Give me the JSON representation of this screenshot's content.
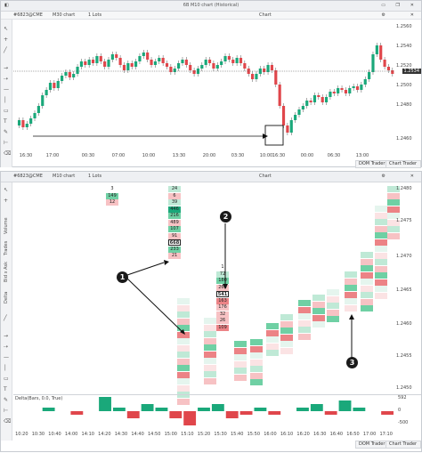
{
  "top_panel": {
    "window_title": "6B M10 chart (Historical)",
    "tab_title": "Chart",
    "symbol": "#6823@CME",
    "timeframe": "M30 chart",
    "lots": "1 Lots",
    "current_price": "1.2534",
    "y_ticks": [
      "1.2560",
      "1.2540",
      "1.2520",
      "1.2500",
      "1.2480",
      "1.2460"
    ],
    "x_ticks": [
      "16:30",
      "17:00",
      "00:30",
      "07:00",
      "10:00",
      "13:30",
      "20:00",
      "03:30",
      "10:00",
      "16:30",
      "00:00",
      "06:30",
      "13:00"
    ],
    "bottom_tab": "DOM Trader",
    "bottom_tab2": "Chart Trader"
  },
  "bottom_panel": {
    "symbol": "#6823@CME",
    "timeframe": "M10 chart",
    "lots": "1 Lots",
    "tab_title": "Chart",
    "y_ticks": [
      "1.2480",
      "1.2475",
      "1.2470",
      "1.2465",
      "1.2460",
      "1.2455",
      "1.2450"
    ],
    "x_ticks": [
      "10:20",
      "10:30",
      "10:40",
      "14:00",
      "14:10",
      "14:20",
      "14:30",
      "14:40",
      "14:50",
      "15:00",
      "15:10",
      "15:20",
      "15:30",
      "15:40",
      "15:50",
      "16:00",
      "16:10",
      "16:20",
      "16:30",
      "16:40",
      "16:50",
      "17:00",
      "17:10"
    ],
    "side_labels": [
      "Volume",
      "Trades",
      "Bid x Ask",
      "Delta"
    ],
    "delta_label": "Delta(Bars, 0.0, True)",
    "delta_axis": [
      "592",
      "0",
      "-500"
    ],
    "bottom_tab": "DOM Trader",
    "bottom_tab2": "Chart Trader"
  },
  "markers": [
    "1",
    "2",
    "3"
  ],
  "footprint_columns": [
    {
      "id": "c0",
      "cells": [
        {
          "t": "3",
          "c": "none"
        },
        {
          "t": "149",
          "c": "g2"
        },
        {
          "t": "12",
          "c": "r1"
        },
        {
          "t": "",
          "c": "none"
        }
      ]
    },
    {
      "id": "c1",
      "cells": [
        {
          "t": "24",
          "c": "g1"
        },
        {
          "t": "6",
          "c": "r1"
        },
        {
          "t": "39",
          "c": "g1"
        },
        {
          "t": "446",
          "c": "g3"
        },
        {
          "t": "216",
          "c": "g2"
        },
        {
          "t": "489",
          "c": "r1"
        },
        {
          "t": "107",
          "c": "g2"
        },
        {
          "t": "91",
          "c": "r1"
        },
        {
          "t": "668",
          "c": "bx"
        },
        {
          "t": "233",
          "c": "g2"
        },
        {
          "t": "21",
          "c": "r1"
        }
      ]
    },
    {
      "id": "c2",
      "cells": [
        {
          "t": "1",
          "c": "none"
        },
        {
          "t": "72",
          "c": "g1"
        },
        {
          "t": "180",
          "c": "g2"
        },
        {
          "t": "264",
          "c": "r1"
        },
        {
          "t": "541",
          "c": "bx"
        },
        {
          "t": "163",
          "c": "r2"
        },
        {
          "t": "176",
          "c": "r1"
        },
        {
          "t": "32",
          "c": "r1"
        },
        {
          "t": "26",
          "c": "r1"
        },
        {
          "t": "109",
          "c": "r2"
        }
      ]
    }
  ],
  "colors": {
    "accent_blue": "#1f4fa8",
    "buy": "#1aa87a",
    "sell": "#e0464b",
    "mark": "#1a1a1a"
  }
}
